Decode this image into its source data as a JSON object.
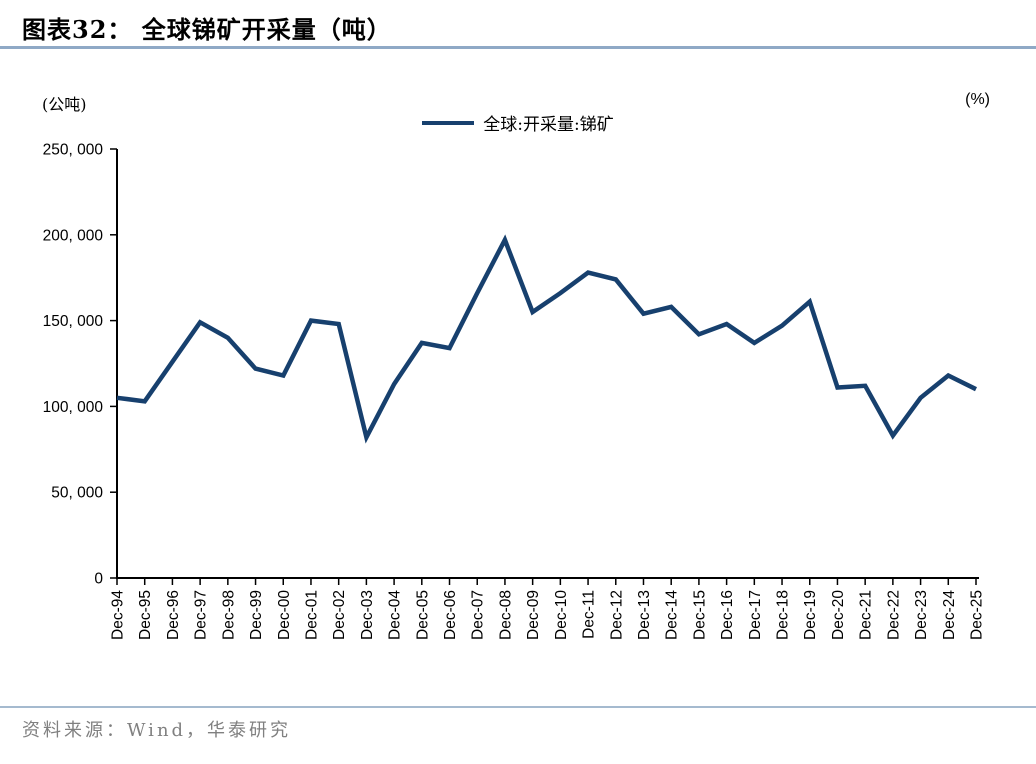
{
  "page": {
    "title": "图表32： 全球锑矿开采量（吨）",
    "source": "资料来源：Wind，华泰研究"
  },
  "chart": {
    "left_unit": "(公吨)",
    "right_unit": "(%)",
    "legend_label": "全球:开采量:锑矿"
  },
  "colors": {
    "line": "#17406E",
    "title_rule": "#8FA9C6",
    "footer_rule": "#A5BACF",
    "source_text": "#808080",
    "axis": "#000000"
  },
  "chart_data": {
    "type": "line",
    "title": "全球锑矿开采量（吨）",
    "xlabel": "",
    "ylabel": "(公吨)",
    "ylabel_right": "(%)",
    "ylim": [
      0,
      250000
    ],
    "grid": false,
    "legend_position": "top-center",
    "y_ticks": [
      0,
      50000,
      100000,
      150000,
      200000,
      250000
    ],
    "y_tick_labels": [
      "0",
      "50, 000",
      "100, 000",
      "150, 000",
      "200, 000",
      "250, 000"
    ],
    "categories": [
      "Dec-94",
      "Dec-95",
      "Dec-96",
      "Dec-97",
      "Dec-98",
      "Dec-99",
      "Dec-00",
      "Dec-01",
      "Dec-02",
      "Dec-03",
      "Dec-04",
      "Dec-05",
      "Dec-06",
      "Dec-07",
      "Dec-08",
      "Dec-09",
      "Dec-10",
      "Dec-11",
      "Dec-12",
      "Dec-13",
      "Dec-14",
      "Dec-15",
      "Dec-16",
      "Dec-17",
      "Dec-18",
      "Dec-19",
      "Dec-20",
      "Dec-21",
      "Dec-22",
      "Dec-23",
      "Dec-24",
      "Dec-25"
    ],
    "series": [
      {
        "name": "全球:开采量:锑矿",
        "values": [
          105000,
          103000,
          126000,
          149000,
          140000,
          122000,
          118000,
          150000,
          148000,
          82000,
          113000,
          137000,
          134000,
          166000,
          197000,
          155000,
          166000,
          178000,
          174000,
          154000,
          158000,
          142000,
          148000,
          137000,
          147000,
          161000,
          111000,
          112000,
          83000,
          105000,
          118000,
          110000
        ]
      }
    ]
  }
}
